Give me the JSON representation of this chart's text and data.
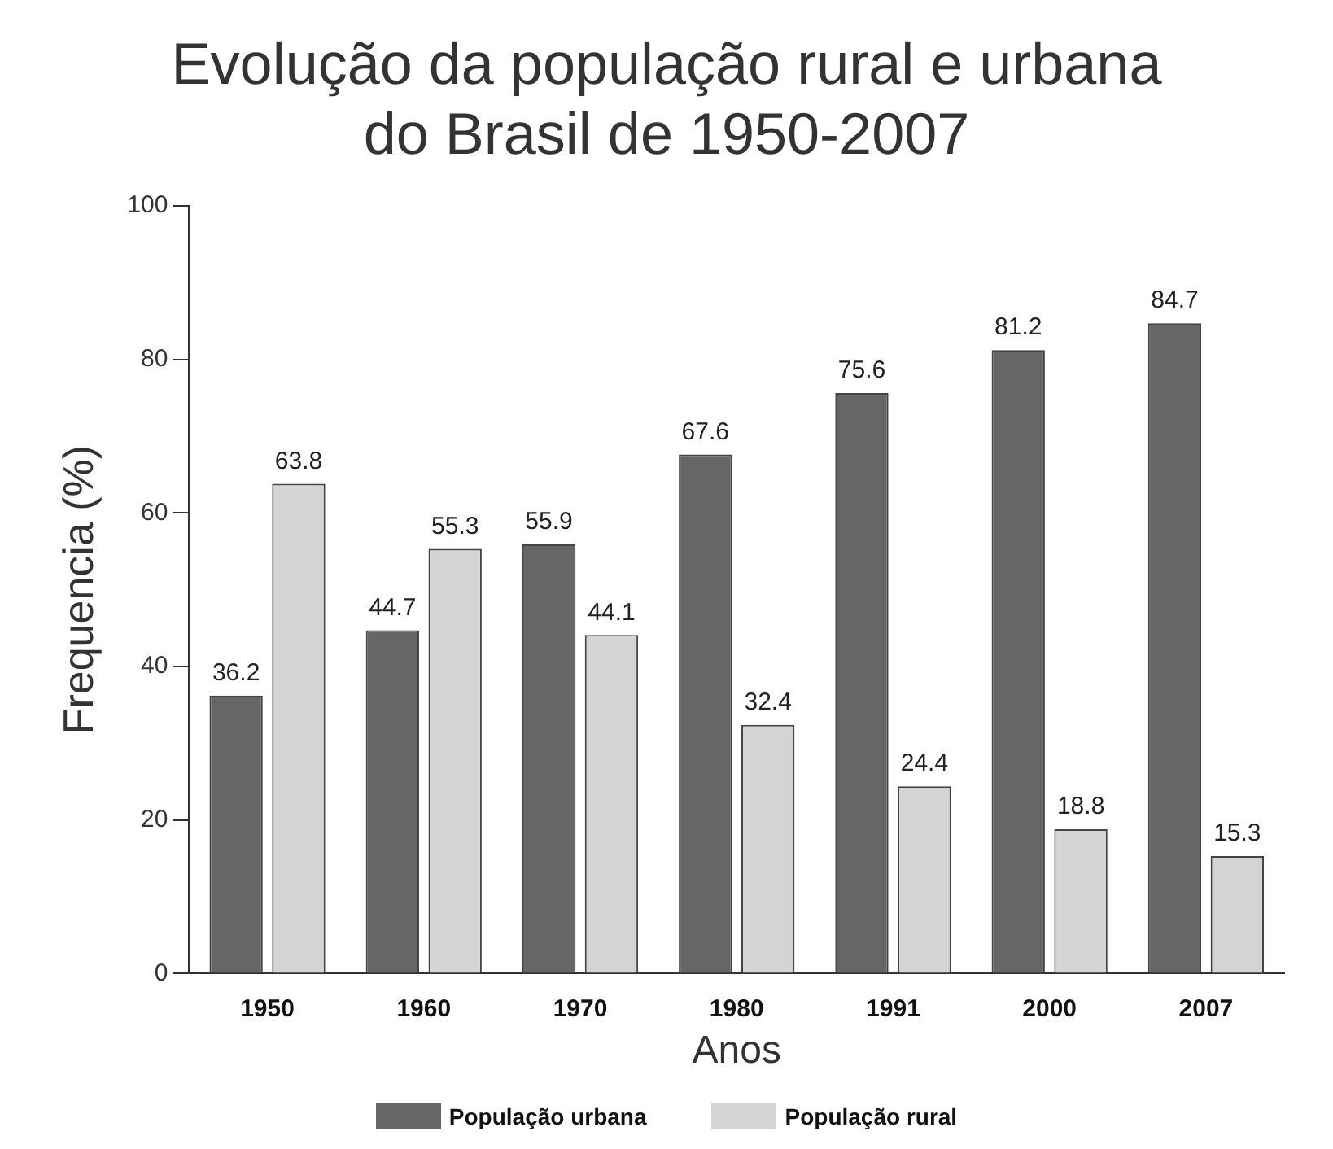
{
  "chart_data": {
    "type": "bar",
    "title": "Evolução da população rural e urbana do Brasil de 1950-2007",
    "xlabel": "Anos",
    "ylabel": "Frequencia (%)",
    "categories": [
      "1950",
      "1960",
      "1970",
      "1980",
      "1991",
      "2000",
      "2007"
    ],
    "series": [
      {
        "name": "População urbana",
        "color": "#666666",
        "values": [
          36.2,
          44.7,
          55.9,
          67.6,
          75.6,
          81.2,
          84.7
        ]
      },
      {
        "name": "População rural",
        "color": "#d4d4d4",
        "values": [
          63.8,
          55.3,
          44.1,
          32.4,
          24.4,
          18.8,
          15.3
        ]
      }
    ],
    "ylim": [
      0,
      100
    ],
    "yticks": [
      0,
      20,
      40,
      60,
      80,
      100
    ],
    "grid": false,
    "legend": "bottom",
    "data_labels": true
  }
}
